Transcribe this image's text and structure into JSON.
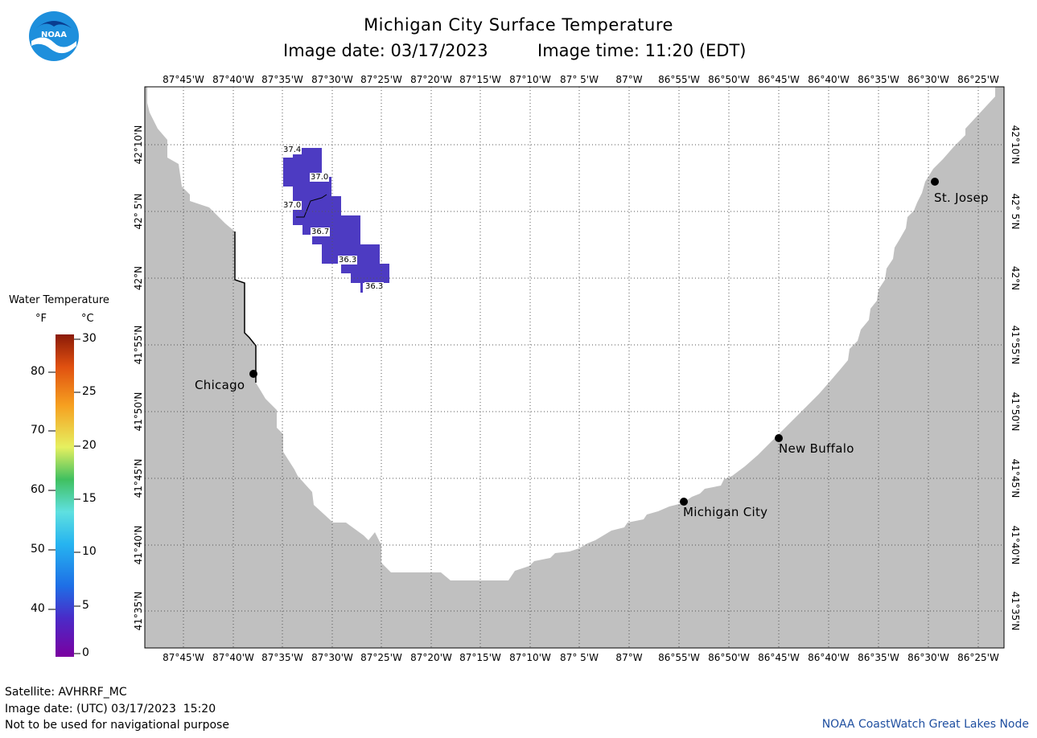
{
  "header": {
    "title": "Michigan City Surface Temperature",
    "subtitle_date": "Image date: 03/17/2023",
    "subtitle_time": "Image time: 11:20 (EDT)"
  },
  "logo": {
    "text": "NOAA"
  },
  "map": {
    "longitude_labels": [
      "87°45'W",
      "87°40'W",
      "87°35'W",
      "87°30'W",
      "87°25'W",
      "87°20'W",
      "87°15'W",
      "87°10'W",
      "87° 5'W",
      "87°W",
      "86°55'W",
      "86°50'W",
      "86°45'W",
      "86°40'W",
      "86°35'W",
      "86°30'W",
      "86°25'W"
    ],
    "latitude_labels": [
      "42°10'N",
      "42° 5'N",
      "42°N",
      "41°55'N",
      "41°50'N",
      "41°45'N",
      "41°40'N",
      "41°35'N"
    ],
    "cities": [
      {
        "name": "Chicago"
      },
      {
        "name": "St. Josep"
      },
      {
        "name": "New Buffalo"
      },
      {
        "name": "Michigan City"
      }
    ],
    "temperature_labels": [
      "37.4",
      "37.0",
      "37.0",
      "36.7",
      "36.3",
      "36.3"
    ],
    "colors": {
      "land": "#c0c0c0",
      "water": "#ffffff",
      "cold_patch": "#4d3bc2",
      "grid": "#555555"
    }
  },
  "colorbar": {
    "title": "Water Temperature",
    "unit_f": "°F",
    "unit_c": "°C",
    "f_ticks": [
      "80",
      "70",
      "60",
      "50",
      "40"
    ],
    "c_ticks": [
      "30",
      "25",
      "20",
      "15",
      "10",
      "5",
      "0"
    ]
  },
  "footer": {
    "satellite": "Satellite: AVHRRF_MC",
    "utc_date": "Image date: (UTC) 03/17/2023  15:20",
    "disclaimer": "Not to be used for navigational purpose",
    "credit": "NOAA CoastWatch Great Lakes Node"
  }
}
